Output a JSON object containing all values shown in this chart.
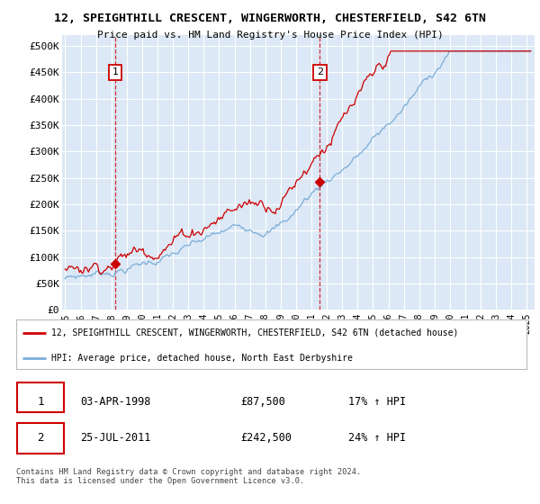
{
  "title": "12, SPEIGHTHILL CRESCENT, WINGERWORTH, CHESTERFIELD, S42 6TN",
  "subtitle": "Price paid vs. HM Land Registry's House Price Index (HPI)",
  "ylabel_ticks": [
    "£0",
    "£50K",
    "£100K",
    "£150K",
    "£200K",
    "£250K",
    "£300K",
    "£350K",
    "£400K",
    "£450K",
    "£500K"
  ],
  "ytick_values": [
    0,
    50000,
    100000,
    150000,
    200000,
    250000,
    300000,
    350000,
    400000,
    450000,
    500000
  ],
  "ylim": [
    0,
    520000
  ],
  "xlim_start": 1994.8,
  "xlim_end": 2025.5,
  "xtick_years": [
    1995,
    1996,
    1997,
    1998,
    1999,
    2000,
    2001,
    2002,
    2003,
    2004,
    2005,
    2006,
    2007,
    2008,
    2009,
    2010,
    2011,
    2012,
    2013,
    2014,
    2015,
    2016,
    2017,
    2018,
    2019,
    2020,
    2021,
    2022,
    2023,
    2024,
    2025
  ],
  "hpi_color": "#7aadd9",
  "price_color": "#cc0000",
  "marker1_year": 1998.25,
  "marker1_value": 87500,
  "marker2_year": 2011.55,
  "marker2_value": 242500,
  "legend_line1": "12, SPEIGHTHILL CRESCENT, WINGERWORTH, CHESTERFIELD, S42 6TN (detached house)",
  "legend_line2": "HPI: Average price, detached house, North East Derbyshire",
  "annotation1_date": "03-APR-1998",
  "annotation1_price": "£87,500",
  "annotation1_hpi": "17% ↑ HPI",
  "annotation2_date": "25-JUL-2011",
  "annotation2_price": "£242,500",
  "annotation2_hpi": "24% ↑ HPI",
  "footer": "Contains HM Land Registry data © Crown copyright and database right 2024.\nThis data is licensed under the Open Government Licence v3.0.",
  "plot_bg_color": "#dce8f5"
}
